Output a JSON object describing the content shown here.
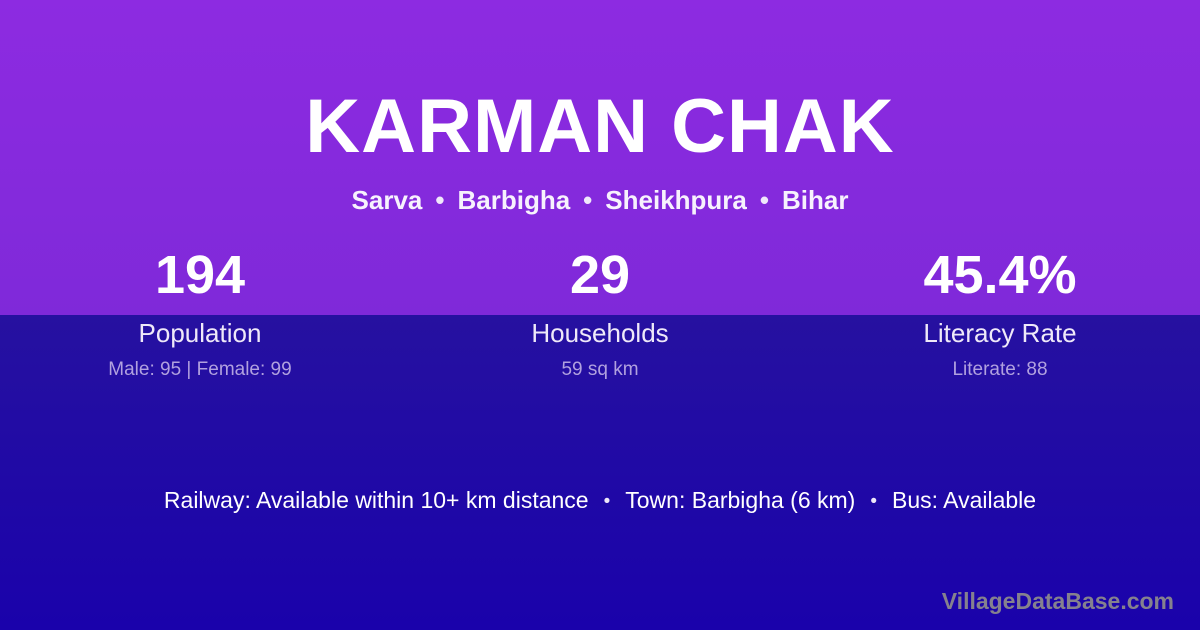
{
  "header": {
    "title": "KARMAN CHAK",
    "breadcrumb": [
      "Sarva",
      "Barbigha",
      "Sheikhpura",
      "Bihar"
    ]
  },
  "separators": {
    "bullet": "•"
  },
  "stats": [
    {
      "value": "194",
      "label": "Population",
      "detail": "Male: 95 | Female: 99"
    },
    {
      "value": "29",
      "label": "Households",
      "detail": "59 sq km"
    },
    {
      "value": "45.4%",
      "label": "Literacy Rate",
      "detail": "Literate: 88"
    }
  ],
  "footer": {
    "facts": [
      "Railway: Available within 10+ km distance",
      "Town: Barbigha (6 km)",
      "Bus: Available"
    ],
    "watermark": "VillageDataBase.com"
  },
  "colors": {
    "top_gradient_start": "#8D2BE1",
    "top_gradient_end": "#7F29D9",
    "bottom_gradient_start": "#2611A0",
    "bottom_gradient_end": "#1A02AB",
    "title_text": "#FFFFFF",
    "stat_detail_text": "#B1A1DF",
    "watermark_text": "#85818E"
  }
}
